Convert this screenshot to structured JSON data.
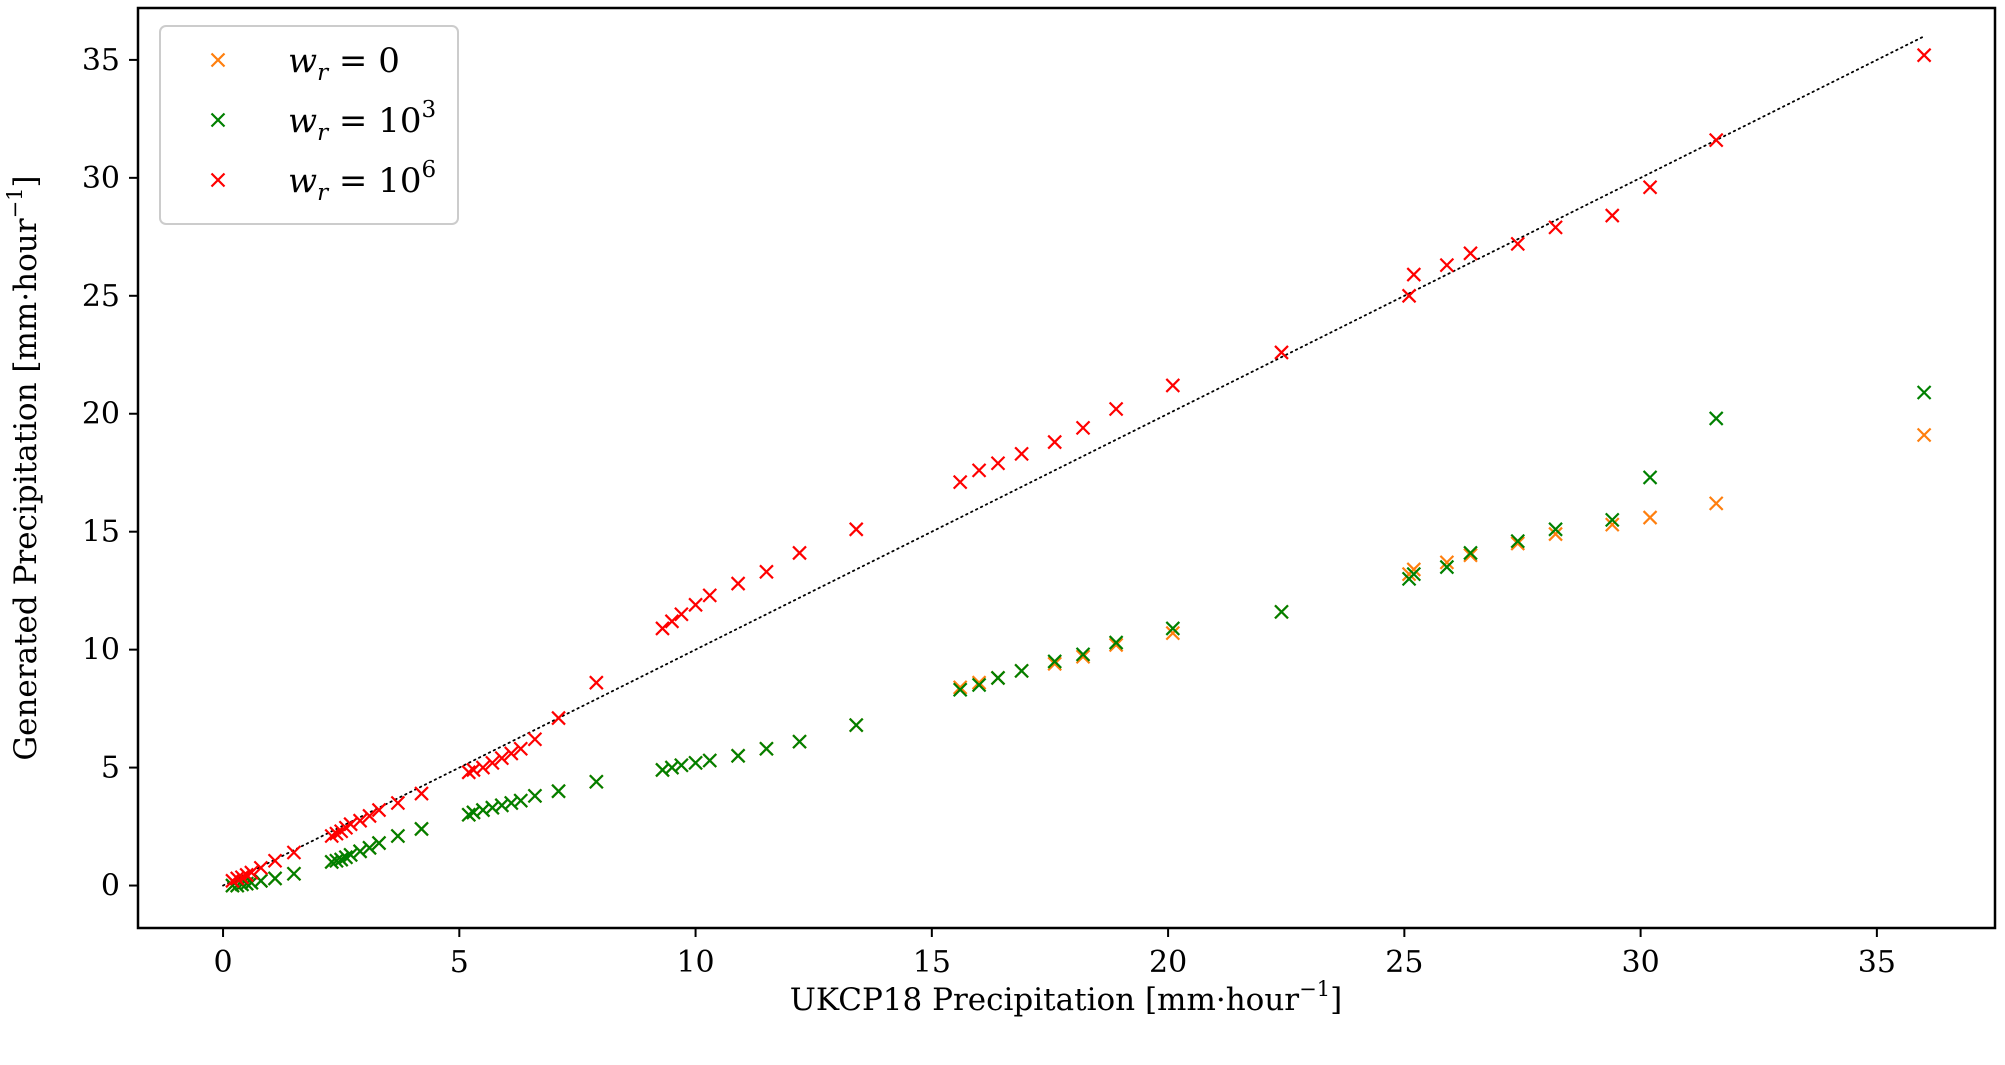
{
  "chart_data": {
    "type": "scatter",
    "xlabel": "UKCP18 Precipitation [mm·hour",
    "xlabel_sup": "−1",
    "xlabel_end": "]",
    "ylabel": "Generated Precipitation [mm·hour",
    "ylabel_sup": "−1",
    "ylabel_end": "]",
    "xlim": [
      -1.8,
      37.5
    ],
    "ylim": [
      -1.8,
      37.2
    ],
    "xticks": [
      0,
      5,
      10,
      15,
      20,
      25,
      30,
      35
    ],
    "yticks": [
      0,
      5,
      10,
      15,
      20,
      25,
      30,
      35
    ],
    "grid": false,
    "legend_position": "top-left",
    "reference_line": {
      "style": "dotted",
      "color": "#000000",
      "x": [
        0,
        36
      ],
      "y": [
        0,
        36
      ]
    },
    "x": [
      0.2,
      0.3,
      0.4,
      0.5,
      0.6,
      0.8,
      1.1,
      1.5,
      2.3,
      2.4,
      2.5,
      2.6,
      2.7,
      2.9,
      3.1,
      3.3,
      3.7,
      4.2,
      5.2,
      5.3,
      5.5,
      5.7,
      5.9,
      6.1,
      6.3,
      6.6,
      7.1,
      7.9,
      9.3,
      9.5,
      9.7,
      10.0,
      10.3,
      10.9,
      11.5,
      12.2,
      13.4,
      15.6,
      16.0,
      16.4,
      16.9,
      17.6,
      18.2,
      18.9,
      20.1,
      22.4,
      25.1,
      25.2,
      25.9,
      26.4,
      27.4,
      28.2,
      29.4,
      30.2,
      31.6,
      36.0
    ],
    "series": [
      {
        "name_base": "w",
        "name_sub": "r",
        "name_rest": " = 0",
        "name_sup": "",
        "color": "#ff7f0e",
        "marker": "x",
        "values": [
          0.0,
          0.0,
          0.05,
          0.08,
          0.12,
          0.2,
          0.3,
          0.5,
          1.0,
          1.05,
          1.1,
          1.2,
          1.3,
          1.45,
          1.6,
          1.8,
          2.1,
          2.4,
          3.0,
          3.1,
          3.2,
          3.3,
          3.4,
          3.5,
          3.6,
          3.8,
          4.0,
          4.4,
          4.9,
          5.0,
          5.1,
          5.2,
          5.3,
          5.5,
          5.8,
          6.1,
          6.8,
          8.4,
          8.6,
          8.8,
          9.1,
          9.4,
          9.7,
          10.2,
          10.7,
          11.6,
          13.2,
          13.4,
          13.7,
          14.0,
          14.5,
          14.9,
          15.3,
          15.6,
          16.2,
          19.1
        ]
      },
      {
        "name_base": "w",
        "name_sub": "r",
        "name_rest": " = 10",
        "name_sup": "3",
        "color": "#008000",
        "marker": "x",
        "values": [
          0.0,
          0.0,
          0.05,
          0.08,
          0.12,
          0.2,
          0.3,
          0.5,
          1.0,
          1.05,
          1.1,
          1.2,
          1.3,
          1.45,
          1.6,
          1.8,
          2.1,
          2.4,
          3.0,
          3.1,
          3.2,
          3.3,
          3.4,
          3.5,
          3.6,
          3.8,
          4.0,
          4.4,
          4.9,
          5.0,
          5.1,
          5.2,
          5.3,
          5.5,
          5.8,
          6.1,
          6.8,
          8.3,
          8.5,
          8.8,
          9.1,
          9.5,
          9.8,
          10.3,
          10.9,
          11.6,
          13.0,
          13.2,
          13.5,
          14.1,
          14.6,
          15.1,
          15.5,
          17.3,
          19.8,
          20.9
        ]
      },
      {
        "name_base": "w",
        "name_sub": "r",
        "name_rest": " = 10",
        "name_sup": "6",
        "color": "#ff0000",
        "marker": "x",
        "values": [
          0.2,
          0.3,
          0.35,
          0.45,
          0.55,
          0.75,
          1.05,
          1.4,
          2.1,
          2.2,
          2.3,
          2.45,
          2.6,
          2.75,
          2.95,
          3.2,
          3.5,
          3.9,
          4.8,
          4.9,
          5.0,
          5.2,
          5.4,
          5.6,
          5.8,
          6.2,
          7.1,
          8.6,
          10.9,
          11.2,
          11.5,
          11.9,
          12.3,
          12.8,
          13.3,
          14.1,
          15.1,
          17.1,
          17.6,
          17.9,
          18.3,
          18.8,
          19.4,
          20.2,
          21.2,
          22.6,
          25.0,
          25.9,
          26.3,
          26.8,
          27.2,
          27.9,
          28.4,
          29.6,
          31.6,
          35.2
        ]
      }
    ]
  }
}
